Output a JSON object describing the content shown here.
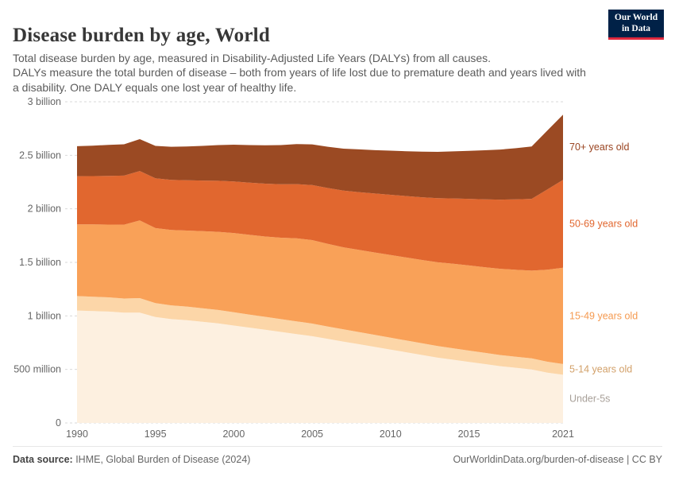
{
  "header": {
    "title": "Disease burden by age, World",
    "subtitle": "Total disease burden by age, measured in Disability-Adjusted Life Years (DALYs) from all causes.\nDALYs measure the total burden of disease – both from years of life lost due to premature death and years lived with a disability. One DALY equals one lost year of healthy life.",
    "logo_line1": "Our World",
    "logo_line2": "in Data",
    "logo_bg": "#002147",
    "logo_accent": "#e0293e"
  },
  "footer": {
    "source_label": "Data source:",
    "source_text": " IHME, Global Burden of Disease (2024)",
    "link_text": "OurWorldinData.org/burden-of-disease | CC BY"
  },
  "chart_data": {
    "type": "area",
    "stacked": true,
    "title": "Disease burden by age, World",
    "xlabel": "",
    "ylabel": "",
    "unit": "DALYs",
    "values_in": "billions of DALYs",
    "ylim": [
      0,
      3
    ],
    "grid": "dashed-horizontal",
    "legend_position": "right-edge-of-lines",
    "x": [
      1990,
      1991,
      1992,
      1993,
      1994,
      1995,
      1996,
      1997,
      1998,
      1999,
      2000,
      2001,
      2002,
      2003,
      2004,
      2005,
      2006,
      2007,
      2008,
      2009,
      2010,
      2011,
      2012,
      2013,
      2014,
      2015,
      2016,
      2017,
      2018,
      2019,
      2020,
      2021
    ],
    "xticks": [
      {
        "value": 1990,
        "label": "1990"
      },
      {
        "value": 1995,
        "label": "1995"
      },
      {
        "value": 2000,
        "label": "2000"
      },
      {
        "value": 2005,
        "label": "2005"
      },
      {
        "value": 2010,
        "label": "2010"
      },
      {
        "value": 2015,
        "label": "2015"
      },
      {
        "value": 2021,
        "label": "2021"
      }
    ],
    "yticks": [
      {
        "value": 0,
        "label": "0"
      },
      {
        "value": 0.5,
        "label": "500 million"
      },
      {
        "value": 1,
        "label": "1 billion"
      },
      {
        "value": 1.5,
        "label": "1.5 billion"
      },
      {
        "value": 2,
        "label": "2 billion"
      },
      {
        "value": 2.5,
        "label": "2.5 billion"
      },
      {
        "value": 3,
        "label": "3 billion"
      }
    ],
    "series": [
      {
        "id": "under-5s",
        "name": "Under-5s",
        "color": "#fdf0e0",
        "label_color": "#a8a099",
        "values": [
          1.05,
          1.045,
          1.04,
          1.03,
          1.03,
          0.99,
          0.97,
          0.96,
          0.945,
          0.93,
          0.91,
          0.89,
          0.87,
          0.85,
          0.83,
          0.81,
          0.785,
          0.76,
          0.735,
          0.71,
          0.685,
          0.66,
          0.635,
          0.61,
          0.59,
          0.57,
          0.55,
          0.53,
          0.515,
          0.5,
          0.47,
          0.45
        ]
      },
      {
        "id": "5-14",
        "name": "5-14 years old",
        "color": "#fcd6a8",
        "label_color": "#d2a069",
        "values": [
          0.135,
          0.134,
          0.133,
          0.132,
          0.136,
          0.13,
          0.128,
          0.127,
          0.126,
          0.125,
          0.124,
          0.122,
          0.121,
          0.12,
          0.119,
          0.118,
          0.116,
          0.115,
          0.113,
          0.112,
          0.111,
          0.11,
          0.109,
          0.108,
          0.107,
          0.106,
          0.105,
          0.104,
          0.103,
          0.103,
          0.102,
          0.1
        ]
      },
      {
        "id": "15-49",
        "name": "15-49 years old",
        "color": "#f9a158",
        "label_color": "#f59a50",
        "values": [
          0.67,
          0.675,
          0.68,
          0.69,
          0.725,
          0.7,
          0.705,
          0.71,
          0.72,
          0.73,
          0.74,
          0.745,
          0.75,
          0.76,
          0.775,
          0.78,
          0.772,
          0.765,
          0.768,
          0.77,
          0.772,
          0.775,
          0.778,
          0.783,
          0.79,
          0.795,
          0.8,
          0.806,
          0.812,
          0.82,
          0.86,
          0.9
        ]
      },
      {
        "id": "50-69",
        "name": "50-69 years old",
        "color": "#e1672f",
        "label_color": "#e1662e",
        "values": [
          0.45,
          0.452,
          0.455,
          0.458,
          0.462,
          0.465,
          0.468,
          0.47,
          0.473,
          0.477,
          0.482,
          0.488,
          0.494,
          0.5,
          0.507,
          0.514,
          0.521,
          0.53,
          0.54,
          0.551,
          0.563,
          0.574,
          0.586,
          0.598,
          0.61,
          0.622,
          0.634,
          0.646,
          0.658,
          0.67,
          0.75,
          0.82
        ]
      },
      {
        "id": "70-plus",
        "name": "70+ years old",
        "color": "#9b4a23",
        "label_color": "#9a4522",
        "values": [
          0.28,
          0.284,
          0.289,
          0.293,
          0.298,
          0.303,
          0.309,
          0.316,
          0.324,
          0.333,
          0.343,
          0.35,
          0.358,
          0.365,
          0.373,
          0.38,
          0.386,
          0.392,
          0.399,
          0.405,
          0.412,
          0.419,
          0.426,
          0.433,
          0.44,
          0.449,
          0.458,
          0.468,
          0.478,
          0.49,
          0.55,
          0.61
        ]
      }
    ]
  }
}
